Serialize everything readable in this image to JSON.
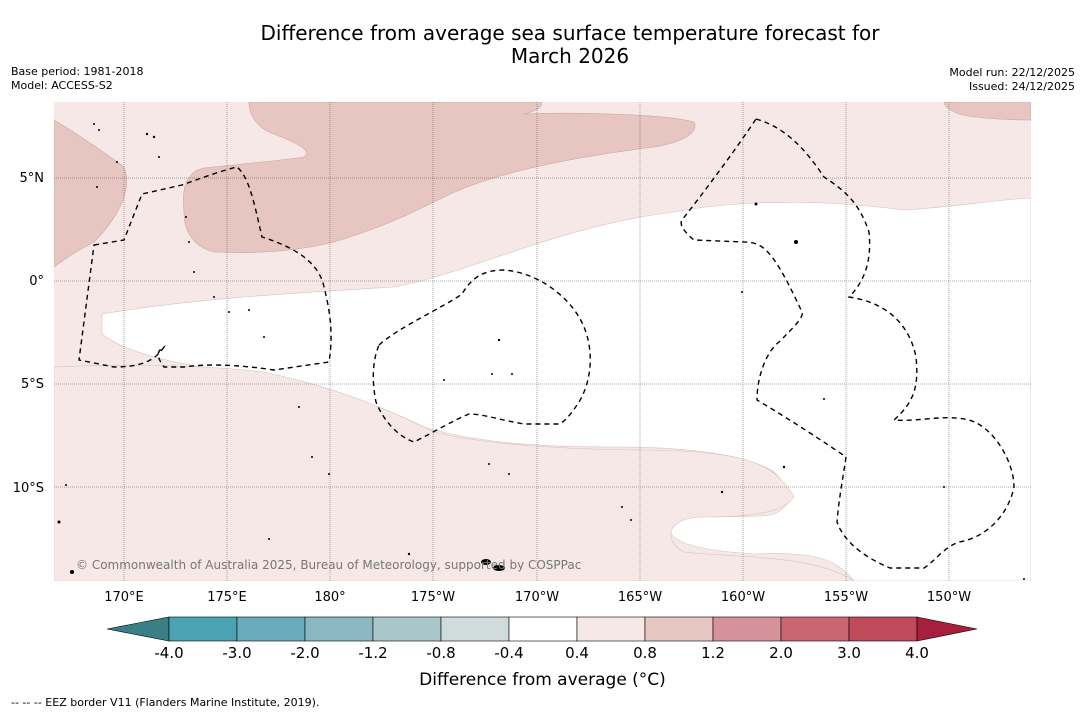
{
  "header": {
    "title_line1": "Difference from average sea surface temperature forecast for",
    "title_line2": "March 2026",
    "base_period": "Base period: 1981-2018",
    "model": "Model: ACCESS-S2",
    "model_run": "Model run: 22/12/2025",
    "issued": "Issued: 24/12/2025"
  },
  "map": {
    "lat_labels": [
      "5°N",
      "0°",
      "5°S",
      "10°S"
    ],
    "lon_labels": [
      "170°E",
      "175°E",
      "180°",
      "175°W",
      "170°W",
      "165°W",
      "160°W",
      "155°W",
      "150°W"
    ],
    "copyright": "© Commonwealth of Australia 2025, Bureau of Meteorology, supported by COSPPac"
  },
  "colorbar": {
    "ticks": [
      "-4.0",
      "-3.0",
      "-2.0",
      "-1.2",
      "-0.8",
      "-0.4",
      "0.4",
      "0.8",
      "1.2",
      "2.0",
      "3.0",
      "4.0"
    ],
    "colors": [
      "#4ca3b3",
      "#6aacbb",
      "#8ab7c2",
      "#a9c7cb",
      "#cfdcdb",
      "#ffffff",
      "#f5e8e6",
      "#e7c5c0",
      "#d6929a",
      "#c96672",
      "#bf4a5a"
    ],
    "low_extend_color": "#3b7f86",
    "high_extend_color": "#a81e3d",
    "label": "Difference from average (°C)"
  },
  "legend": {
    "eez_note": "--  --  -- EEZ border V11 (Flanders Marine Institute, 2019)."
  },
  "palette": {
    "band_0_4_0_8": "#f5e8e6",
    "band_0_8_1_2": "#e7c5c0",
    "neutral": "#ffffff"
  }
}
